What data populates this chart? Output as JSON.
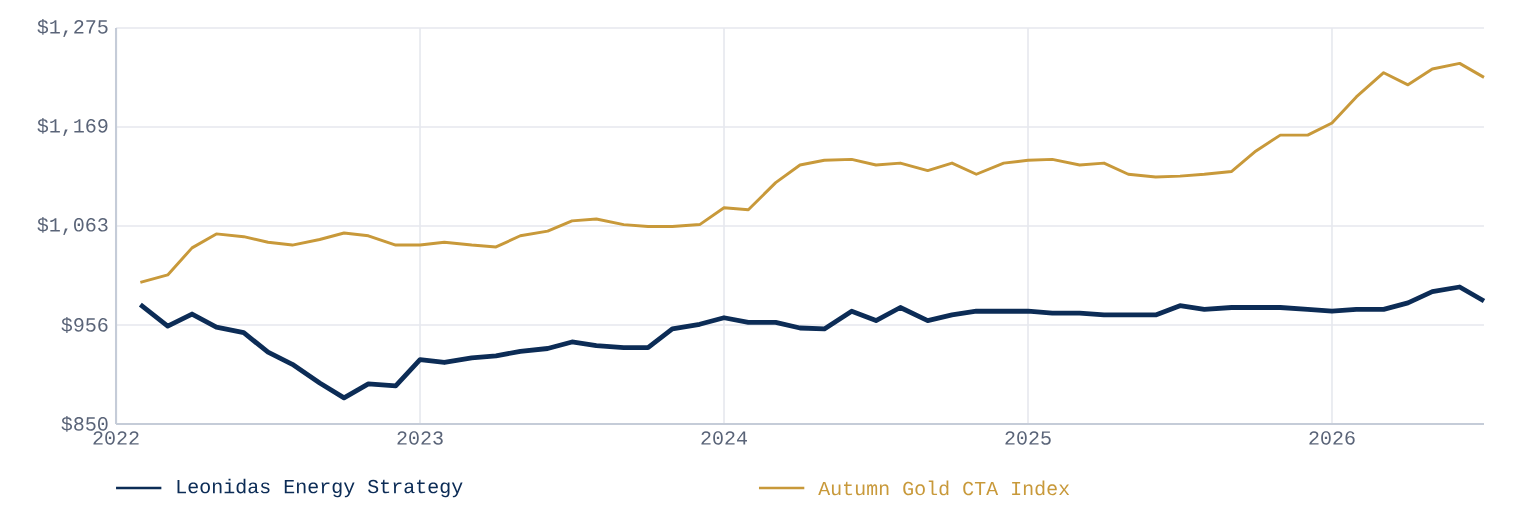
{
  "chart_data": {
    "type": "line",
    "x": [
      "2022-02",
      "2022-03",
      "2022-04",
      "2022-05",
      "2022-06",
      "2022-07",
      "2022-08",
      "2022-09",
      "2022-10",
      "2022-11",
      "2022-12",
      "2023-01",
      "2023-02",
      "2023-03",
      "2023-04",
      "2023-05",
      "2023-06",
      "2023-07",
      "2023-08",
      "2023-09",
      "2023-10",
      "2023-11",
      "2023-12",
      "2024-01",
      "2024-02",
      "2024-03",
      "2024-04",
      "2024-05",
      "2024-06",
      "2024-07",
      "2024-08",
      "2024-09",
      "2024-10",
      "2024-11",
      "2024-12",
      "2025-01",
      "2025-02",
      "2025-03",
      "2025-04",
      "2025-05",
      "2025-06",
      "2025-07",
      "2025-08",
      "2025-09",
      "2025-10",
      "2025-11",
      "2025-12",
      "2026-01",
      "2026-02",
      "2026-03",
      "2026-04",
      "2026-05",
      "2026-06",
      "2026-07"
    ],
    "series": [
      {
        "name": "Leonidas Energy Strategy",
        "color": "#0c2c56",
        "values": [
          978,
          955,
          968,
          954,
          948,
          927,
          914,
          894,
          878,
          893,
          891,
          919,
          916,
          921,
          923,
          928,
          931,
          938,
          934,
          932,
          932,
          952,
          957,
          964,
          959,
          959,
          953,
          952,
          971,
          961,
          975,
          961,
          967,
          971,
          971,
          971,
          969,
          969,
          967,
          967,
          967,
          977,
          973,
          975,
          975,
          975,
          973,
          971,
          973,
          973,
          980,
          992,
          997,
          982
        ]
      },
      {
        "name": "Autumn Gold CTA Index",
        "color": "#c8993a",
        "values": [
          1002,
          1010,
          1039,
          1054,
          1051,
          1045,
          1042,
          1048,
          1055,
          1052,
          1042,
          1042,
          1045,
          1042,
          1040,
          1052,
          1057,
          1068,
          1070,
          1064,
          1062,
          1062,
          1064,
          1082,
          1080,
          1109,
          1128,
          1133,
          1134,
          1128,
          1130,
          1122,
          1130,
          1118,
          1130,
          1133,
          1134,
          1128,
          1130,
          1118,
          1115,
          1116,
          1118,
          1121,
          1143,
          1160,
          1160,
          1173,
          1201,
          1227,
          1214,
          1231,
          1237,
          1222
        ]
      }
    ],
    "xlim": [
      "2022-01",
      "2026-07"
    ],
    "xticks": [
      {
        "value": "2022",
        "label": "2022"
      },
      {
        "value": "2023",
        "label": "2023"
      },
      {
        "value": "2024",
        "label": "2024"
      },
      {
        "value": "2025",
        "label": "2025"
      },
      {
        "value": "2026",
        "label": "2026"
      }
    ],
    "ylim": [
      850,
      1275
    ],
    "yticks": [
      {
        "value": 850,
        "label": "$850"
      },
      {
        "value": 956.25,
        "label": "$956"
      },
      {
        "value": 1062.5,
        "label": "$1,063"
      },
      {
        "value": 1168.75,
        "label": "$1,169"
      },
      {
        "value": 1275,
        "label": "$1,275"
      }
    ],
    "grid": true,
    "legend": "bottom",
    "marker": "none",
    "line_style": "solid"
  }
}
